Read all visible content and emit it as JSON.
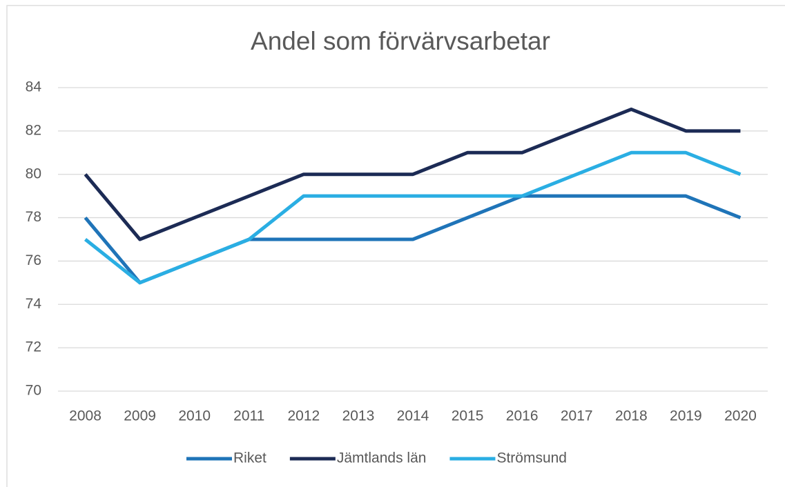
{
  "chart_data": {
    "type": "line",
    "title": "Andel som förvärvsarbetar",
    "categories": [
      "2008",
      "2009",
      "2010",
      "2011",
      "2012",
      "2013",
      "2014",
      "2015",
      "2016",
      "2017",
      "2018",
      "2019",
      "2020"
    ],
    "series": [
      {
        "name": "Riket",
        "color": "#1f74b8",
        "values": [
          78,
          75,
          76,
          77,
          77,
          77,
          77,
          78,
          79,
          79,
          79,
          79,
          78
        ]
      },
      {
        "name": "Jämtlands län",
        "color": "#1c2b55",
        "values": [
          80,
          77,
          78,
          79,
          80,
          80,
          80,
          81,
          81,
          82,
          83,
          82,
          82
        ]
      },
      {
        "name": "Strömsund",
        "color": "#2aaee3",
        "values": [
          77,
          75,
          76,
          77,
          79,
          79,
          79,
          79,
          79,
          80,
          81,
          81,
          80
        ]
      }
    ],
    "ylim": [
      70,
      84
    ],
    "yticks": [
      70,
      72,
      74,
      76,
      78,
      80,
      82,
      84
    ],
    "grid": true,
    "legend": "bottom"
  }
}
